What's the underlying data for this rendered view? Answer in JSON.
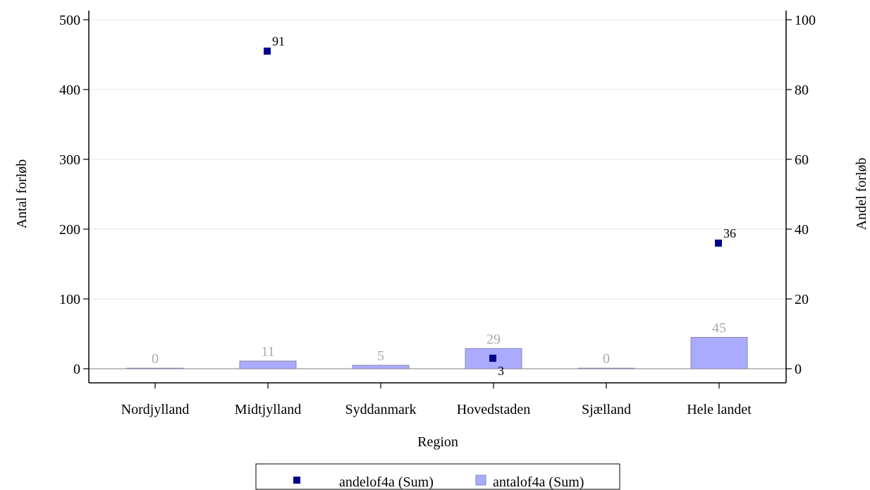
{
  "chart_data": {
    "type": "bar",
    "xlabel": "Region",
    "ylabel_left": "Antal forløb",
    "ylabel_right": "Andel forløb",
    "categories": [
      "Nordjylland",
      "Midtjylland",
      "Syddanmark",
      "Hovedstaden",
      "Sjælland",
      "Hele landet"
    ],
    "ylim_left": [
      0,
      500
    ],
    "yticks_left": [
      0,
      100,
      200,
      300,
      400,
      500
    ],
    "ylim_right": [
      0,
      100
    ],
    "yticks_right": [
      0,
      20,
      40,
      60,
      80,
      100
    ],
    "grid": true,
    "legend_position": "bottom",
    "series": [
      {
        "name": "antalof4a (Sum)",
        "kind": "bar",
        "axis": "left",
        "values": [
          0,
          11,
          5,
          29,
          0,
          45
        ],
        "labels": [
          "0",
          "11",
          "5",
          "29",
          "0",
          "45"
        ],
        "fill": "#aaaaff",
        "stroke": "#8888aa",
        "label_color": "#aaaaaa"
      },
      {
        "name": "andelof4a (Sum)",
        "kind": "scatter",
        "axis": "right",
        "values": [
          null,
          91,
          null,
          3,
          null,
          36
        ],
        "labels": [
          null,
          "91",
          null,
          "3",
          null,
          "36"
        ],
        "color": "#00008b",
        "label_color": "#000000"
      }
    ]
  }
}
